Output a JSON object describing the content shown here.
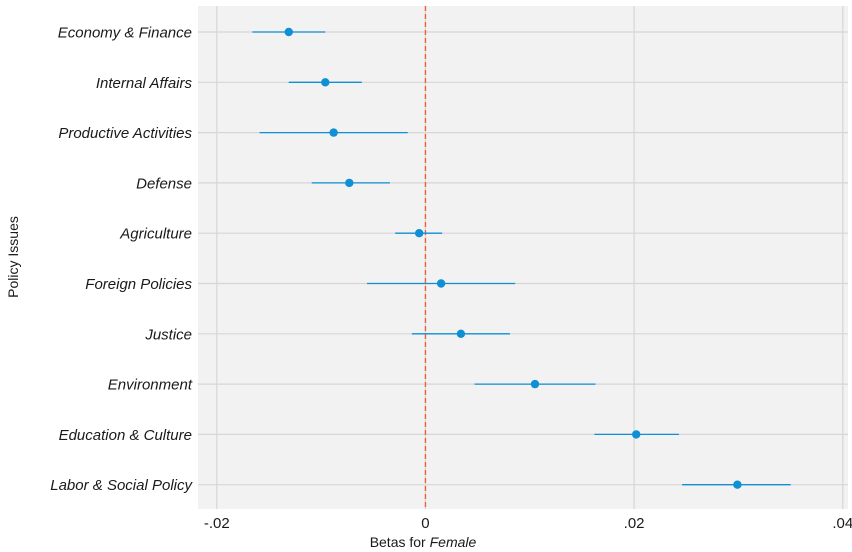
{
  "chart_data": {
    "type": "scatter",
    "subtype": "coefficient-plot",
    "title": "",
    "xlabel_prefix": "Betas for ",
    "xlabel_emph": "Female",
    "ylabel": "Policy Issues",
    "xlim": [
      -0.0218,
      0.0405
    ],
    "x_ticks": [
      -0.02,
      0,
      0.02,
      0.04
    ],
    "x_tick_labels": [
      "-.02",
      "0",
      ".02",
      ".04"
    ],
    "reference_line": {
      "x": 0,
      "color": "#f0603c",
      "style": "dashed"
    },
    "colors": {
      "point": "#0f8fd4",
      "panel": "#f2f2f2",
      "grid": "#d6d6d6"
    },
    "grid": true,
    "categories": [
      "Economy & Finance",
      "Internal Affairs",
      "Productive Activities",
      "Defense",
      "Agriculture",
      "Foreign Policies",
      "Justice",
      "Environment",
      "Education & Culture",
      "Labor & Social Policy"
    ],
    "estimates": [
      -0.0131,
      -0.0096,
      -0.0088,
      -0.0073,
      -0.0006,
      0.0015,
      0.0034,
      0.0105,
      0.0202,
      0.0299
    ],
    "ci_low": [
      -0.0166,
      -0.0131,
      -0.0159,
      -0.0109,
      -0.0029,
      -0.0056,
      -0.0013,
      0.0047,
      0.0162,
      0.0246
    ],
    "ci_high": [
      -0.0096,
      -0.0061,
      -0.0017,
      -0.0034,
      0.0016,
      0.0086,
      0.0081,
      0.0163,
      0.0243,
      0.035
    ]
  }
}
